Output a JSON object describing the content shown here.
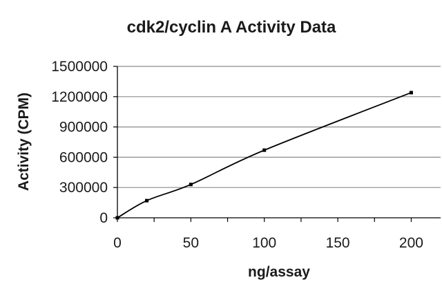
{
  "chart_data": {
    "type": "line",
    "title": "cdk2/cyclin A Activity Data",
    "xlabel": "ng/assay",
    "ylabel": "Activity (CPM)",
    "xlim": [
      0,
      220
    ],
    "ylim": [
      0,
      1500000
    ],
    "x_ticks": [
      "0",
      "50",
      "100",
      "150",
      "200"
    ],
    "x_tick_values": [
      0,
      50,
      100,
      150,
      200
    ],
    "y_ticks": [
      "0",
      "300000",
      "600000",
      "900000",
      "1200000",
      "1500000"
    ],
    "y_tick_values": [
      0,
      300000,
      600000,
      900000,
      1200000,
      1500000
    ],
    "grid": "horizontal",
    "legend": "none",
    "series": [
      {
        "x": [
          0,
          20,
          50,
          100,
          200
        ],
        "values": [
          0,
          170000,
          330000,
          670000,
          1240000
        ],
        "color": "#000000"
      }
    ]
  }
}
